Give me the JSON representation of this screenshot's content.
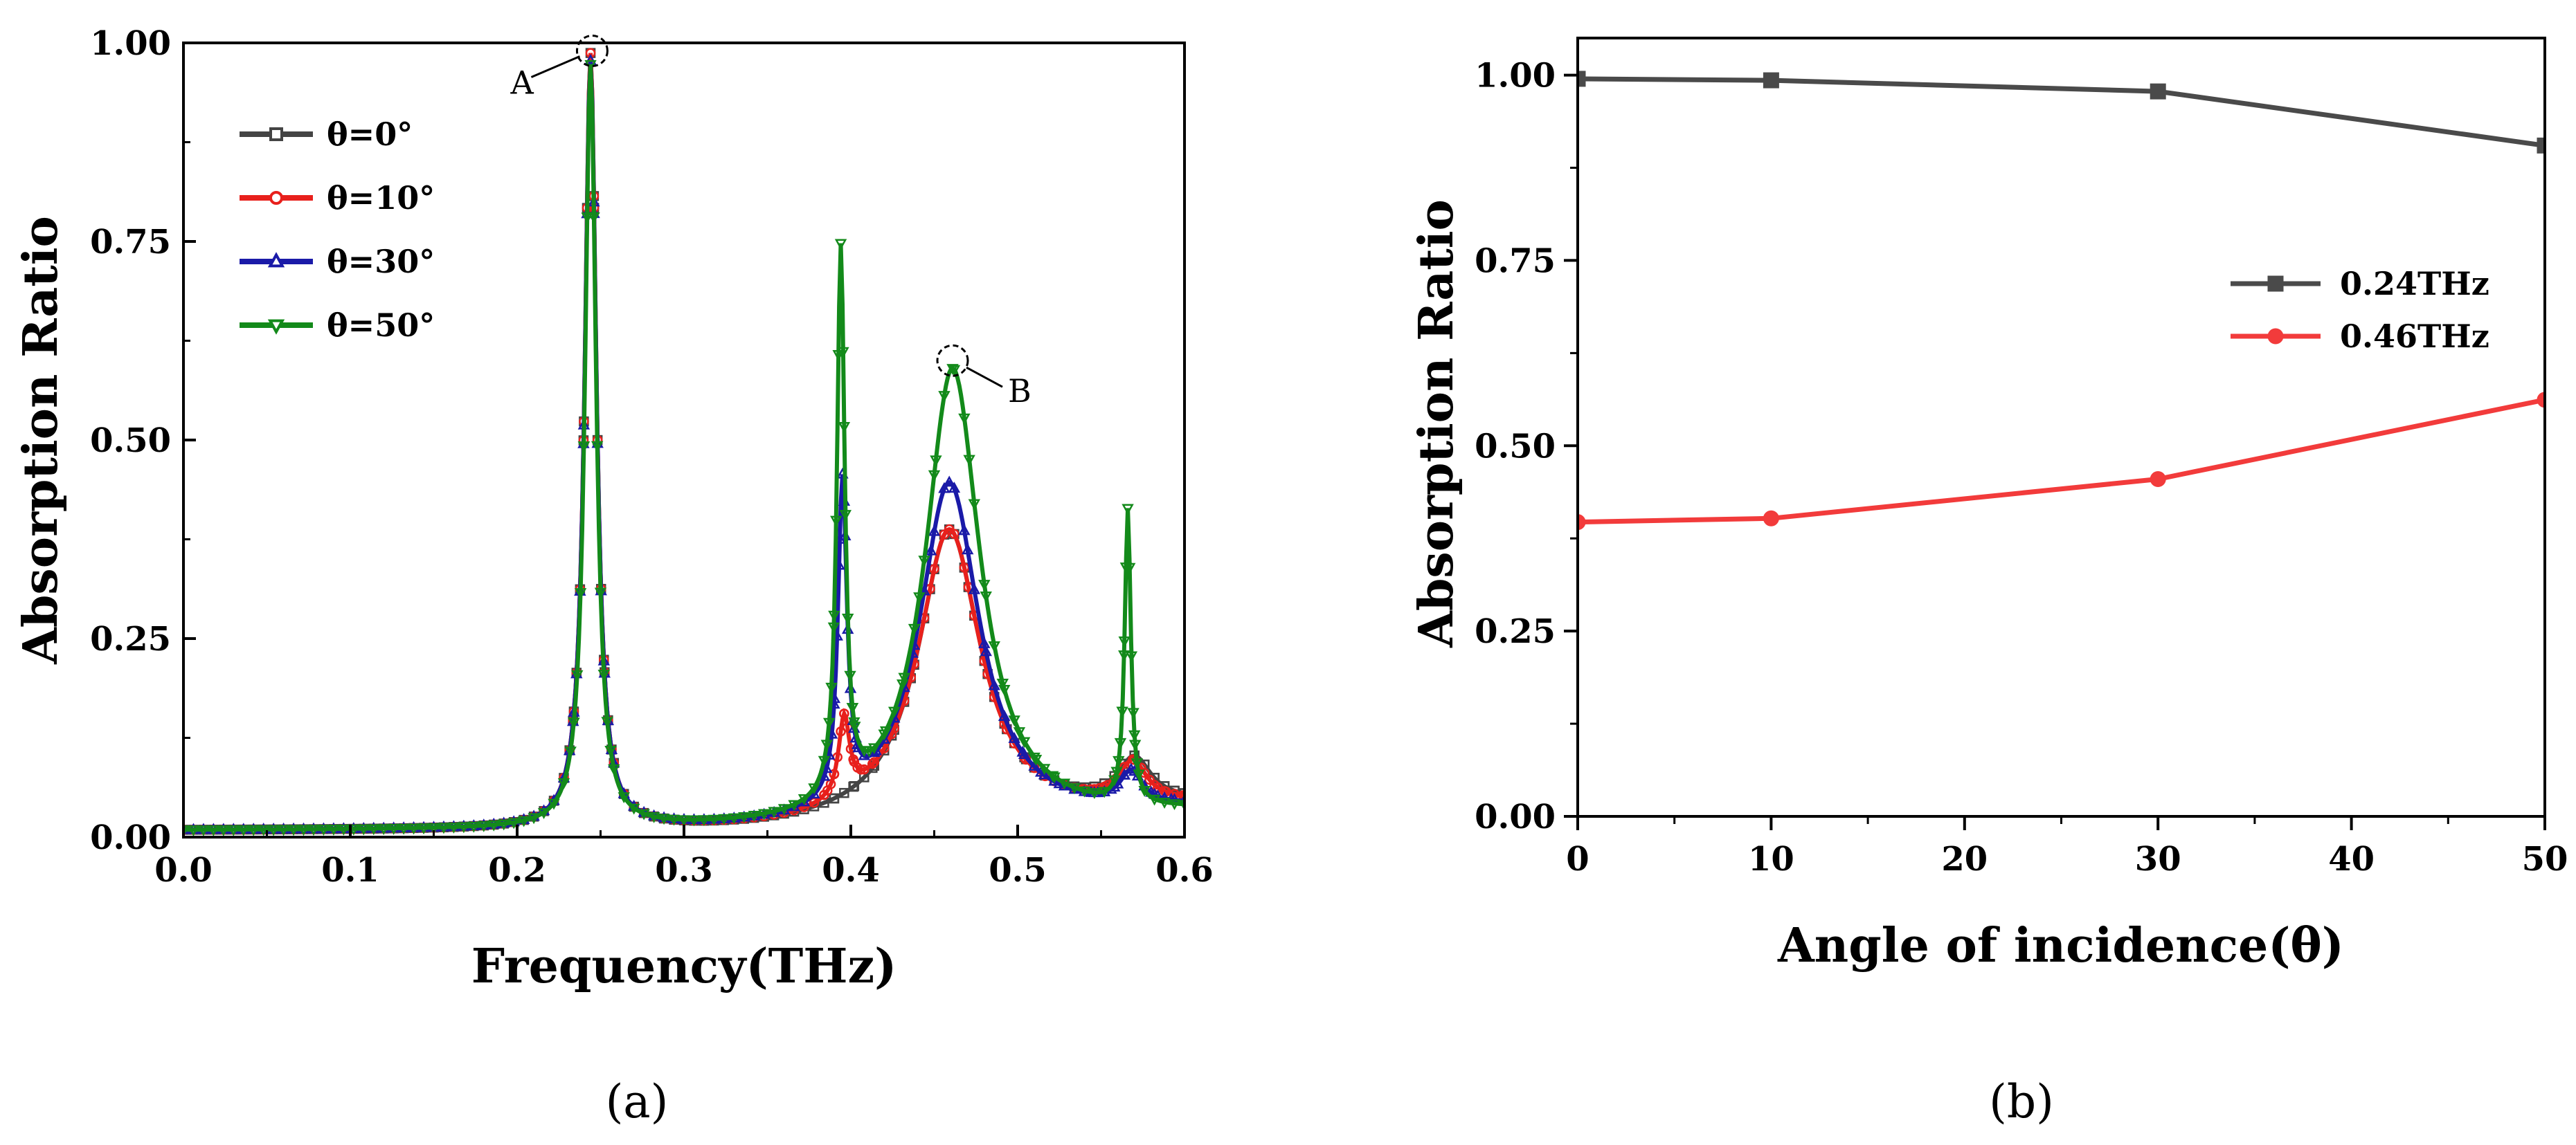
{
  "chart_data": [
    {
      "panel_label": "(a)",
      "type": "line",
      "xlabel": "Frequency(THz)",
      "ylabel": "Absorption Ratio",
      "xlim": [
        0.0,
        0.6
      ],
      "ylim": [
        0.0,
        1.0
      ],
      "xticks": [
        0.0,
        0.1,
        0.2,
        0.3,
        0.4,
        0.5,
        0.6
      ],
      "xtick_labels": [
        "0.0",
        "0.1",
        "0.2",
        "0.3",
        "0.4",
        "0.5",
        "0.6"
      ],
      "yticks": [
        0.0,
        0.25,
        0.5,
        0.75,
        1.0
      ],
      "ytick_labels": [
        "0.00",
        "0.25",
        "0.50",
        "0.75",
        "1.00"
      ],
      "legend_position": "top-left",
      "annotations": [
        {
          "text": "A",
          "x": 0.245,
          "y": 0.99
        },
        {
          "text": "B",
          "x": 0.461,
          "y": 0.6
        }
      ],
      "series": [
        {
          "name": "θ=0°",
          "color": "#444444",
          "marker": "square",
          "peaks": [
            {
              "f0": 0.244,
              "w": 0.0042,
              "a": 0.975
            },
            {
              "f0": 0.459,
              "w": 0.023,
              "a": 0.37
            },
            {
              "f0": 0.57,
              "w": 0.012,
              "a": 0.055
            }
          ],
          "baseline": 0.008,
          "tail": 0.03
        },
        {
          "name": "θ=10°",
          "color": "#e8201c",
          "marker": "circle",
          "peaks": [
            {
              "f0": 0.244,
              "w": 0.0042,
              "a": 0.975
            },
            {
              "f0": 0.396,
              "w": 0.004,
              "a": 0.1
            },
            {
              "f0": 0.459,
              "w": 0.023,
              "a": 0.37
            },
            {
              "f0": 0.569,
              "w": 0.01,
              "a": 0.05
            }
          ],
          "baseline": 0.008,
          "tail": 0.03
        },
        {
          "name": "θ=30°",
          "color": "#1a1aa8",
          "marker": "triangle-up",
          "peaks": [
            {
              "f0": 0.244,
              "w": 0.0042,
              "a": 0.965
            },
            {
              "f0": 0.395,
              "w": 0.0032,
              "a": 0.4
            },
            {
              "f0": 0.459,
              "w": 0.022,
              "a": 0.43
            },
            {
              "f0": 0.568,
              "w": 0.008,
              "a": 0.04
            }
          ],
          "baseline": 0.008,
          "tail": 0.025
        },
        {
          "name": "θ=50°",
          "color": "#138a1a",
          "marker": "triangle-down",
          "peaks": [
            {
              "f0": 0.244,
              "w": 0.004,
              "a": 0.96
            },
            {
              "f0": 0.394,
              "w": 0.0028,
              "a": 0.69
            },
            {
              "f0": 0.461,
              "w": 0.02,
              "a": 0.575
            },
            {
              "f0": 0.566,
              "w": 0.0022,
              "a": 0.37
            }
          ],
          "baseline": 0.008,
          "tail": 0.02
        }
      ]
    },
    {
      "panel_label": "(b)",
      "type": "line",
      "xlabel": "Angle of incidence(θ)",
      "ylabel": "Absorption Ratio",
      "xlim": [
        0,
        50
      ],
      "ylim": [
        0.0,
        1.05
      ],
      "xticks": [
        0,
        10,
        20,
        30,
        40,
        50
      ],
      "xtick_labels": [
        "0",
        "10",
        "20",
        "30",
        "40",
        "50"
      ],
      "yticks": [
        0.0,
        0.25,
        0.5,
        0.75,
        1.0
      ],
      "ytick_labels": [
        "0.00",
        "0.25",
        "0.50",
        "0.75",
        "1.00"
      ],
      "legend_position": "center-right",
      "series": [
        {
          "name": "0.24THz",
          "color": "#4a4a4a",
          "marker": "square",
          "x": [
            0,
            10,
            30,
            50
          ],
          "y": [
            0.995,
            0.993,
            0.978,
            0.905
          ]
        },
        {
          "name": "0.46THz",
          "color": "#f23b3b",
          "marker": "circle",
          "x": [
            0,
            10,
            30,
            50
          ],
          "y": [
            0.397,
            0.402,
            0.455,
            0.562
          ]
        }
      ]
    }
  ]
}
